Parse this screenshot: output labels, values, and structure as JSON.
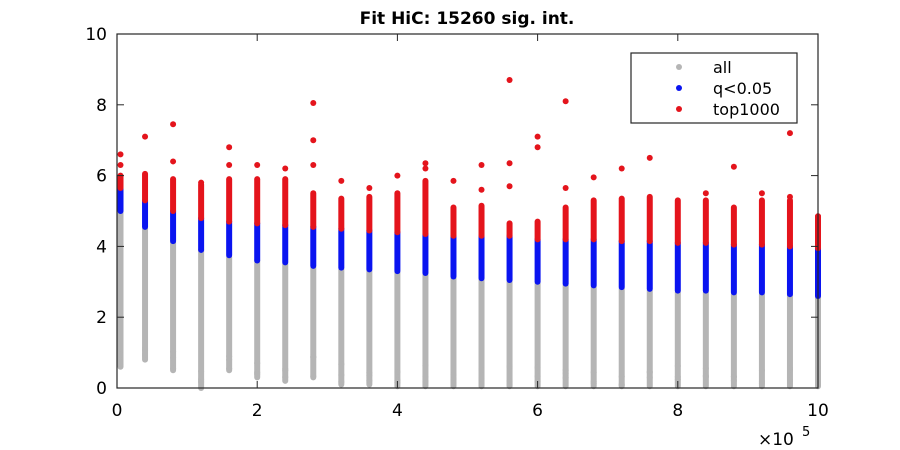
{
  "chart_data": {
    "type": "scatter",
    "title": "Fit HiC: 15260 sig. int.",
    "xlabel": "",
    "ylabel": "",
    "x_exponent_label": "×10",
    "x_exponent_power": "5",
    "x_multiplier": 100000,
    "xlim": [
      0,
      1000000
    ],
    "ylim": [
      0,
      10
    ],
    "xticks": [
      0,
      2,
      4,
      6,
      8,
      10
    ],
    "yticks": [
      0,
      2,
      4,
      6,
      8,
      10
    ],
    "xtick_labels": [
      "0",
      "2",
      "4",
      "6",
      "8",
      "10"
    ],
    "ytick_labels": [
      "0",
      "2",
      "4",
      "6",
      "8",
      "10"
    ],
    "grid": false,
    "legend_position": "top-right",
    "x": [
      5000,
      40000,
      80000,
      120000,
      160000,
      200000,
      240000,
      280000,
      320000,
      360000,
      400000,
      440000,
      480000,
      520000,
      560000,
      600000,
      640000,
      680000,
      720000,
      760000,
      800000,
      840000,
      880000,
      920000,
      960000,
      1000000
    ],
    "series": [
      {
        "name": "all",
        "color": "#b5b5b5",
        "ranges": [
          [
            0.6,
            5.0
          ],
          [
            0.8,
            4.5
          ],
          [
            0.5,
            4.1
          ],
          [
            0.0,
            3.9
          ],
          [
            0.5,
            3.7
          ],
          [
            0.3,
            3.6
          ],
          [
            0.2,
            3.5
          ],
          [
            0.3,
            3.4
          ],
          [
            0.1,
            3.35
          ],
          [
            0.1,
            3.3
          ],
          [
            0.05,
            3.25
          ],
          [
            0.05,
            3.2
          ],
          [
            0.05,
            3.1
          ],
          [
            0.05,
            3.05
          ],
          [
            0.05,
            3.0
          ],
          [
            0.05,
            2.95
          ],
          [
            0.05,
            2.9
          ],
          [
            0.05,
            2.85
          ],
          [
            0.05,
            2.8
          ],
          [
            0.05,
            2.75
          ],
          [
            0.05,
            2.7
          ],
          [
            0.05,
            2.7
          ],
          [
            0.05,
            2.65
          ],
          [
            0.05,
            2.65
          ],
          [
            0.05,
            2.6
          ],
          [
            0.05,
            2.6
          ]
        ]
      },
      {
        "name": "q<0.05",
        "color": "#0a14f0",
        "ranges": [
          [
            5.0,
            5.65
          ],
          [
            4.55,
            5.3
          ],
          [
            4.15,
            5.0
          ],
          [
            3.9,
            4.8
          ],
          [
            3.75,
            4.7
          ],
          [
            3.6,
            4.65
          ],
          [
            3.55,
            4.6
          ],
          [
            3.45,
            4.55
          ],
          [
            3.4,
            4.5
          ],
          [
            3.35,
            4.45
          ],
          [
            3.3,
            4.4
          ],
          [
            3.25,
            4.35
          ],
          [
            3.15,
            4.3
          ],
          [
            3.1,
            4.3
          ],
          [
            3.05,
            4.3
          ],
          [
            3.0,
            4.2
          ],
          [
            2.95,
            4.2
          ],
          [
            2.9,
            4.2
          ],
          [
            2.85,
            4.15
          ],
          [
            2.8,
            4.15
          ],
          [
            2.75,
            4.1
          ],
          [
            2.75,
            4.1
          ],
          [
            2.7,
            4.05
          ],
          [
            2.7,
            4.05
          ],
          [
            2.65,
            4.0
          ],
          [
            2.6,
            3.95
          ]
        ]
      },
      {
        "name": "top1000",
        "color": "#e4141c",
        "ranges": [
          [
            5.65,
            6.0
          ],
          [
            5.3,
            6.05
          ],
          [
            5.0,
            5.9
          ],
          [
            4.8,
            5.75
          ],
          [
            4.7,
            5.9
          ],
          [
            4.65,
            5.9
          ],
          [
            4.6,
            5.9
          ],
          [
            4.55,
            5.5
          ],
          [
            4.5,
            5.35
          ],
          [
            4.45,
            5.4
          ],
          [
            4.4,
            5.5
          ],
          [
            4.35,
            5.85
          ],
          [
            4.3,
            5.1
          ],
          [
            4.3,
            5.15
          ],
          [
            4.3,
            4.65
          ],
          [
            4.2,
            4.7
          ],
          [
            4.2,
            5.1
          ],
          [
            4.2,
            5.3
          ],
          [
            4.15,
            5.35
          ],
          [
            4.15,
            5.4
          ],
          [
            4.1,
            5.3
          ],
          [
            4.1,
            5.3
          ],
          [
            4.05,
            5.1
          ],
          [
            4.05,
            5.3
          ],
          [
            4.0,
            5.3
          ],
          [
            3.95,
            4.85
          ]
        ],
        "outliers": [
          [
            5000,
            6.6
          ],
          [
            5000,
            6.3
          ],
          [
            40000,
            7.1
          ],
          [
            80000,
            7.45
          ],
          [
            80000,
            6.4
          ],
          [
            120000,
            5.8
          ],
          [
            160000,
            6.8
          ],
          [
            160000,
            6.3
          ],
          [
            200000,
            6.3
          ],
          [
            240000,
            6.2
          ],
          [
            280000,
            8.05
          ],
          [
            280000,
            7.0
          ],
          [
            280000,
            6.3
          ],
          [
            320000,
            5.85
          ],
          [
            360000,
            5.65
          ],
          [
            400000,
            6.0
          ],
          [
            440000,
            6.35
          ],
          [
            440000,
            6.2
          ],
          [
            480000,
            5.85
          ],
          [
            520000,
            6.3
          ],
          [
            520000,
            5.6
          ],
          [
            560000,
            8.7
          ],
          [
            560000,
            6.35
          ],
          [
            560000,
            5.7
          ],
          [
            600000,
            7.1
          ],
          [
            600000,
            6.8
          ],
          [
            640000,
            8.1
          ],
          [
            640000,
            5.65
          ],
          [
            680000,
            5.95
          ],
          [
            720000,
            6.2
          ],
          [
            760000,
            6.5
          ],
          [
            840000,
            5.5
          ],
          [
            880000,
            6.25
          ],
          [
            920000,
            5.5
          ],
          [
            960000,
            7.2
          ],
          [
            960000,
            5.4
          ],
          [
            1000000,
            4.85
          ]
        ]
      }
    ]
  }
}
